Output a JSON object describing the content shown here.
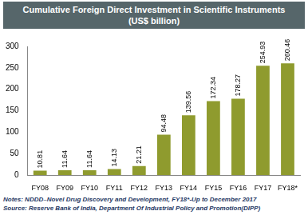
{
  "chart_data": {
    "type": "bar",
    "title": "Cumulative Foreign Direct Investment in Scientific Instruments",
    "subtitle": "(US$ billion)",
    "categories": [
      "FY08",
      "FY09",
      "FY10",
      "FY11",
      "FY12",
      "FY13",
      "FY14",
      "FY15",
      "FY16",
      "FY17",
      "FY18*"
    ],
    "values": [
      10.81,
      11.64,
      11.64,
      14.13,
      21.21,
      94.48,
      139.56,
      172.34,
      178.27,
      254.93,
      260.46
    ],
    "color": "#8f9b2e",
    "ylim": [
      0,
      300
    ],
    "yticks": [
      0,
      50,
      100,
      150,
      200,
      250,
      300
    ],
    "grid": false,
    "data_labels": true,
    "annotations": [
      "Notes: NDDD–Novel Drug Discovery and Development, FY18*-Up to December 2017",
      "Source: Reserve Bank of India, Department Of Industrial Policy and Promotion(DIPP)"
    ]
  }
}
